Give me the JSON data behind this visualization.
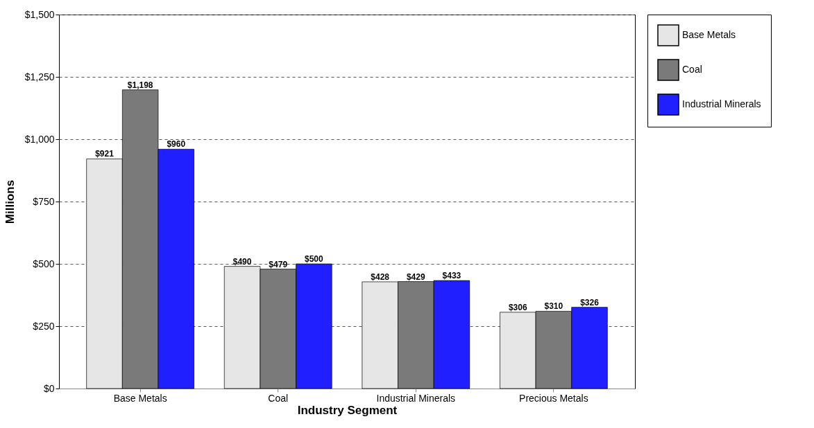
{
  "chart_data": {
    "type": "bar",
    "xlabel": "Industry Segment",
    "ylabel": "Millions",
    "categories": [
      "Base Metals",
      "Coal",
      "Industrial Minerals",
      "Precious Metals"
    ],
    "series": [
      {
        "name": "Base Metals",
        "color": "#e6e6e6",
        "values": [
          921,
          490,
          428,
          306
        ],
        "value_labels": [
          "$921",
          "$490",
          "$428",
          "$306"
        ]
      },
      {
        "name": "Coal",
        "color": "#7a7a7a",
        "values": [
          1198,
          479,
          429,
          310
        ],
        "value_labels": [
          "$1,198",
          "$479",
          "$429",
          "$310"
        ]
      },
      {
        "name": "Industrial Minerals",
        "color": "#1f1fff",
        "values": [
          960,
          500,
          433,
          326
        ],
        "value_labels": [
          "$960",
          "$500",
          "$433",
          "$326"
        ]
      }
    ],
    "ylim": [
      0,
      1500
    ],
    "yticks": [
      {
        "value": 0,
        "label": "$0"
      },
      {
        "value": 250,
        "label": "$250"
      },
      {
        "value": 500,
        "label": "$500"
      },
      {
        "value": 750,
        "label": "$750"
      },
      {
        "value": 1000,
        "label": "$1,000"
      },
      {
        "value": 1250,
        "label": "$1,250"
      },
      {
        "value": 1500,
        "label": "$1,500"
      }
    ],
    "grid": "y",
    "legend": "top right"
  }
}
